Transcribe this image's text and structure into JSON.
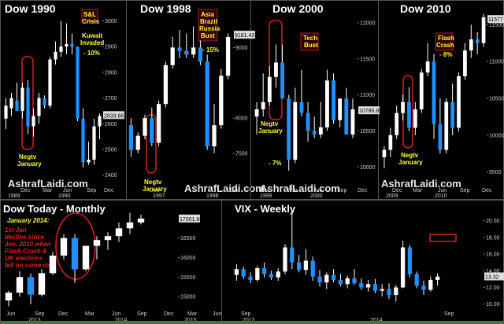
{
  "colors": {
    "background": "#000000",
    "panel_border": "#666666",
    "up_candle": "#ffffff",
    "down_candle": "#1e90ff",
    "annotation_yellow": "#ffff33",
    "highlight_red": "#d42020",
    "annotation_red": "#e02020",
    "watermark": "#ffffff",
    "bottom_band": "#3a7a3a"
  },
  "panels": {
    "dow1990": {
      "title": "Dow 1990",
      "watermark": "AshrafLaidi.com"
    },
    "dow1998": {
      "title": "Dow 1998",
      "watermark": "AshrafLaidi.com"
    },
    "dow2000": {
      "title": "Dow 2000",
      "watermark": "AshrafLaidi.com"
    },
    "dow2010": {
      "title": "Dow 2010",
      "watermark": "AshrafLaidi.com"
    },
    "dowtoday": {
      "title": "Dow Today - Monthly",
      "note_title": "January 2014:",
      "note_lines": [
        "1st Jan",
        "decline since",
        "Jan. 2010 when",
        "Flash Crash &",
        "UK elections",
        "fell  on same day"
      ]
    },
    "vix": {
      "title": "VIX - Weekly"
    }
  },
  "chart_data": [
    {
      "type": "candlestick",
      "title": "Dow 1990",
      "x_tick_labels": [
        "Dec",
        "Mar",
        "Jun",
        "Sep",
        "Dec"
      ],
      "x_year_labels": [
        "1989",
        "1990"
      ],
      "y_tick_labels": [
        "3000",
        "2900",
        "2800",
        "2700",
        "2600",
        "2500",
        "2400"
      ],
      "ylim": [
        2390,
        3020
      ],
      "last_value_label": "2633.66",
      "candles": [
        {
          "o": 2620,
          "h": 2700,
          "l": 2580,
          "c": 2670
        },
        {
          "o": 2660,
          "h": 2720,
          "l": 2630,
          "c": 2700
        },
        {
          "o": 2690,
          "h": 2760,
          "l": 2650,
          "c": 2650
        },
        {
          "o": 2650,
          "h": 2760,
          "l": 2620,
          "c": 2740
        },
        {
          "o": 2740,
          "h": 2770,
          "l": 2560,
          "c": 2590
        },
        {
          "o": 2590,
          "h": 2660,
          "l": 2550,
          "c": 2630
        },
        {
          "o": 2630,
          "h": 2720,
          "l": 2600,
          "c": 2700
        },
        {
          "o": 2700,
          "h": 2710,
          "l": 2660,
          "c": 2670
        },
        {
          "o": 2670,
          "h": 2860,
          "l": 2660,
          "c": 2850
        },
        {
          "o": 2850,
          "h": 2920,
          "l": 2830,
          "c": 2880
        },
        {
          "o": 2880,
          "h": 3000,
          "l": 2860,
          "c": 2900
        },
        {
          "o": 2900,
          "h": 2990,
          "l": 2870,
          "c": 2910
        },
        {
          "o": 2910,
          "h": 2950,
          "l": 2870,
          "c": 2900
        },
        {
          "o": 2900,
          "h": 2900,
          "l": 2610,
          "c": 2620
        },
        {
          "o": 2620,
          "h": 2660,
          "l": 2430,
          "c": 2450
        },
        {
          "o": 2450,
          "h": 2530,
          "l": 2440,
          "c": 2460
        },
        {
          "o": 2460,
          "h": 2620,
          "l": 2440,
          "c": 2590
        },
        {
          "o": 2590,
          "h": 2640,
          "l": 2540,
          "c": 2630
        }
      ],
      "annotations": [
        {
          "label": "S&L Crisis"
        },
        {
          "label": "Kuwait Invaded"
        },
        {
          "label": "- 10%"
        },
        {
          "label": "Negtv January"
        }
      ]
    },
    {
      "type": "candlestick",
      "title": "Dow 1998",
      "x_tick_labels": [
        "Dec",
        "Dec"
      ],
      "x_year_labels": [
        "1997",
        "1998"
      ],
      "y_tick_labels": [
        "9000",
        "8000",
        "7500"
      ],
      "ylim": [
        7200,
        9450
      ],
      "last_value_label": "9181.43",
      "candles": [
        {
          "o": 7900,
          "h": 8000,
          "l": 7450,
          "c": 7550
        },
        {
          "o": 7550,
          "h": 7800,
          "l": 7500,
          "c": 7750
        },
        {
          "o": 7750,
          "h": 8050,
          "l": 7700,
          "c": 8000
        },
        {
          "o": 8000,
          "h": 8150,
          "l": 7600,
          "c": 7650
        },
        {
          "o": 7650,
          "h": 8250,
          "l": 7600,
          "c": 8200
        },
        {
          "o": 8200,
          "h": 8800,
          "l": 8150,
          "c": 8750
        },
        {
          "o": 8750,
          "h": 9150,
          "l": 8700,
          "c": 9000
        },
        {
          "o": 9000,
          "h": 9250,
          "l": 8850,
          "c": 8950
        },
        {
          "o": 8950,
          "h": 9200,
          "l": 8850,
          "c": 8900
        },
        {
          "o": 8900,
          "h": 9300,
          "l": 8850,
          "c": 9000
        },
        {
          "o": 9000,
          "h": 9100,
          "l": 8750,
          "c": 8800
        },
        {
          "o": 8800,
          "h": 8900,
          "l": 7550,
          "c": 7600
        },
        {
          "o": 7600,
          "h": 8200,
          "l": 7500,
          "c": 7900
        },
        {
          "o": 7900,
          "h": 8700,
          "l": 7850,
          "c": 8600
        },
        {
          "o": 8600,
          "h": 9200,
          "l": 8550,
          "c": 9150
        }
      ],
      "annotations": [
        {
          "label": "Asia Brazil Russia Bust"
        },
        {
          "label": "- 15%"
        },
        {
          "label": "Negtv January"
        }
      ]
    },
    {
      "type": "candlestick",
      "title": "Dow 2000",
      "x_tick_labels": [
        "Dec",
        "Mar",
        "Jun",
        "Sep",
        "Dec"
      ],
      "x_year_labels": [
        "1999",
        "2000"
      ],
      "y_tick_labels": [
        "12000",
        "11500",
        "11000",
        "10500",
        "10000"
      ],
      "ylim": [
        9850,
        12100
      ],
      "last_value_label": "10786.85",
      "candles": [
        {
          "o": 10700,
          "h": 10900,
          "l": 10450,
          "c": 10800
        },
        {
          "o": 10800,
          "h": 11300,
          "l": 10700,
          "c": 10900
        },
        {
          "o": 10900,
          "h": 11400,
          "l": 10850,
          "c": 11250
        },
        {
          "o": 11250,
          "h": 11700,
          "l": 11100,
          "c": 11450
        },
        {
          "o": 11450,
          "h": 11700,
          "l": 10950,
          "c": 10950
        },
        {
          "o": 10950,
          "h": 11000,
          "l": 9950,
          "c": 10100
        },
        {
          "o": 10100,
          "h": 11100,
          "l": 10050,
          "c": 10900
        },
        {
          "o": 10900,
          "h": 11350,
          "l": 10700,
          "c": 10750
        },
        {
          "o": 10750,
          "h": 10900,
          "l": 10350,
          "c": 10500
        },
        {
          "o": 10500,
          "h": 10700,
          "l": 10400,
          "c": 10450
        },
        {
          "o": 10450,
          "h": 10900,
          "l": 10400,
          "c": 10550
        },
        {
          "o": 10550,
          "h": 11350,
          "l": 10500,
          "c": 11200
        },
        {
          "o": 11200,
          "h": 11300,
          "l": 10600,
          "c": 10650
        },
        {
          "o": 10650,
          "h": 10950,
          "l": 10550,
          "c": 10950
        },
        {
          "o": 10950,
          "h": 11100,
          "l": 10450,
          "c": 10450
        },
        {
          "o": 10450,
          "h": 10950,
          "l": 10400,
          "c": 10800
        }
      ],
      "annotations": [
        {
          "label": "Tech Bust"
        },
        {
          "label": "Negtv January"
        },
        {
          "label": "- 7%"
        }
      ]
    },
    {
      "type": "candlestick",
      "title": "Dow 2010",
      "x_tick_labels": [
        "Dec",
        "Mar",
        "Jun",
        "Sep",
        "Dec"
      ],
      "x_year_labels": [
        "2009",
        "2010"
      ],
      "y_tick_labels": [
        "11500",
        "11000",
        "10500",
        "10000",
        "9500"
      ],
      "ylim": [
        9400,
        11750
      ],
      "last_value_label": "11577",
      "candles": [
        {
          "o": 9700,
          "h": 9850,
          "l": 9550,
          "c": 9800
        },
        {
          "o": 9800,
          "h": 10100,
          "l": 9700,
          "c": 10000
        },
        {
          "o": 10000,
          "h": 10400,
          "l": 9950,
          "c": 10300
        },
        {
          "o": 10300,
          "h": 10550,
          "l": 10200,
          "c": 10450
        },
        {
          "o": 10450,
          "h": 10650,
          "l": 10050,
          "c": 10100
        },
        {
          "o": 10100,
          "h": 10450,
          "l": 10000,
          "c": 10350
        },
        {
          "o": 10350,
          "h": 10900,
          "l": 10300,
          "c": 10850
        },
        {
          "o": 10850,
          "h": 11250,
          "l": 10800,
          "c": 11000
        },
        {
          "o": 11000,
          "h": 11100,
          "l": 9950,
          "c": 10150
        },
        {
          "o": 10150,
          "h": 10500,
          "l": 9750,
          "c": 9800
        },
        {
          "o": 9800,
          "h": 10500,
          "l": 9750,
          "c": 10450
        },
        {
          "o": 10450,
          "h": 10700,
          "l": 10000,
          "c": 10100
        },
        {
          "o": 10100,
          "h": 10850,
          "l": 10050,
          "c": 10800
        },
        {
          "o": 10800,
          "h": 11250,
          "l": 10750,
          "c": 11150
        },
        {
          "o": 11150,
          "h": 11500,
          "l": 11050,
          "c": 11300
        },
        {
          "o": 11300,
          "h": 11400,
          "l": 11100,
          "c": 11250
        },
        {
          "o": 11250,
          "h": 11650,
          "l": 11200,
          "c": 11600
        }
      ],
      "annotations": [
        {
          "label": "Flash Crash"
        },
        {
          "label": "- 8%"
        },
        {
          "label": "Negtv January"
        }
      ]
    },
    {
      "type": "candlestick",
      "title": "Dow Today - Monthly",
      "x_tick_labels": [
        "Jun",
        "Sep",
        "Dec",
        "Mar",
        "Jun",
        "Sep",
        "Dec",
        "Mar",
        "Jun"
      ],
      "x_year_labels": [
        "2013",
        "2014",
        "2015"
      ],
      "y_tick_labels": [
        "16500",
        "16000",
        "15500",
        "15000"
      ],
      "ylim": [
        14700,
        17200
      ],
      "last_value_label": "17001.66",
      "candles": [
        {
          "o": 14900,
          "h": 15150,
          "l": 14750,
          "c": 15100
        },
        {
          "o": 15100,
          "h": 15650,
          "l": 15000,
          "c": 15500
        },
        {
          "o": 15500,
          "h": 15600,
          "l": 14800,
          "c": 15050
        },
        {
          "o": 15050,
          "h": 15700,
          "l": 15000,
          "c": 15600
        },
        {
          "o": 15600,
          "h": 16150,
          "l": 15550,
          "c": 16050
        },
        {
          "o": 16050,
          "h": 16600,
          "l": 15950,
          "c": 16500
        },
        {
          "o": 16500,
          "h": 16600,
          "l": 15350,
          "c": 15700
        },
        {
          "o": 15700,
          "h": 16300,
          "l": 15650,
          "c": 16300
        },
        {
          "o": 16300,
          "h": 16550,
          "l": 15950,
          "c": 16450
        },
        {
          "o": 16450,
          "h": 16650,
          "l": 16200,
          "c": 16550
        },
        {
          "o": 16550,
          "h": 16900,
          "l": 16400,
          "c": 16750
        },
        {
          "o": 16750,
          "h": 17150,
          "l": 16600,
          "c": 16900
        },
        {
          "o": 16900,
          "h": 17100,
          "l": 16850,
          "c": 17000
        }
      ],
      "annotations": [
        {
          "label": "January 2014:"
        },
        {
          "label": "1st Jan decline since Jan. 2010 when Flash Crash & UK elections fell  on same day"
        }
      ]
    },
    {
      "type": "candlestick",
      "title": "VIX - Weekly",
      "x_tick_labels": [
        "Sep",
        "Sep"
      ],
      "x_year_labels": [
        "2013",
        "2014"
      ],
      "y_tick_labels": [
        "20.00",
        "18.00",
        "16.00",
        "14.00",
        "12.00",
        "10.00"
      ],
      "ylim": [
        9.5,
        21
      ],
      "last_value_label": "13.32",
      "candles": [
        {
          "o": 13.5,
          "h": 14.8,
          "l": 12.8,
          "c": 14.2
        },
        {
          "o": 14.2,
          "h": 14.5,
          "l": 13.0,
          "c": 13.3
        },
        {
          "o": 13.3,
          "h": 13.8,
          "l": 12.5,
          "c": 12.9
        },
        {
          "o": 12.9,
          "h": 14.6,
          "l": 12.7,
          "c": 14.3
        },
        {
          "o": 14.3,
          "h": 15.0,
          "l": 13.2,
          "c": 13.6
        },
        {
          "o": 13.6,
          "h": 14.0,
          "l": 12.9,
          "c": 13.2
        },
        {
          "o": 13.2,
          "h": 14.3,
          "l": 12.8,
          "c": 13.9
        },
        {
          "o": 13.9,
          "h": 17.2,
          "l": 13.6,
          "c": 16.8
        },
        {
          "o": 16.8,
          "h": 21.3,
          "l": 14.2,
          "c": 15.0
        },
        {
          "o": 15.0,
          "h": 15.9,
          "l": 13.8,
          "c": 14.1
        },
        {
          "o": 14.1,
          "h": 16.6,
          "l": 13.5,
          "c": 15.2
        },
        {
          "o": 15.2,
          "h": 15.7,
          "l": 12.8,
          "c": 13.3
        },
        {
          "o": 13.3,
          "h": 14.1,
          "l": 12.1,
          "c": 12.6
        },
        {
          "o": 12.6,
          "h": 13.8,
          "l": 11.8,
          "c": 13.5
        },
        {
          "o": 13.5,
          "h": 14.2,
          "l": 12.6,
          "c": 12.9
        },
        {
          "o": 12.9,
          "h": 13.6,
          "l": 12.1,
          "c": 12.4
        },
        {
          "o": 12.4,
          "h": 13.4,
          "l": 11.9,
          "c": 13.1
        },
        {
          "o": 13.1,
          "h": 14.2,
          "l": 12.3,
          "c": 12.5
        },
        {
          "o": 12.5,
          "h": 13.1,
          "l": 11.7,
          "c": 12.0
        },
        {
          "o": 12.0,
          "h": 12.9,
          "l": 11.5,
          "c": 12.4
        },
        {
          "o": 12.4,
          "h": 13.0,
          "l": 11.3,
          "c": 11.6
        },
        {
          "o": 11.6,
          "h": 12.4,
          "l": 10.9,
          "c": 11.8
        },
        {
          "o": 11.8,
          "h": 12.5,
          "l": 10.6,
          "c": 11.1
        },
        {
          "o": 11.1,
          "h": 12.3,
          "l": 10.3,
          "c": 12.0
        },
        {
          "o": 12.0,
          "h": 17.6,
          "l": 11.9,
          "c": 16.8
        },
        {
          "o": 16.8,
          "h": 17.1,
          "l": 13.2,
          "c": 13.6
        },
        {
          "o": 13.6,
          "h": 13.9,
          "l": 11.9,
          "c": 12.2
        },
        {
          "o": 12.2,
          "h": 12.8,
          "l": 11.1,
          "c": 11.7
        },
        {
          "o": 11.7,
          "h": 13.3,
          "l": 11.5,
          "c": 12.9
        },
        {
          "o": 12.9,
          "h": 13.7,
          "l": 12.2,
          "c": 13.3
        }
      ],
      "annotations": []
    }
  ]
}
